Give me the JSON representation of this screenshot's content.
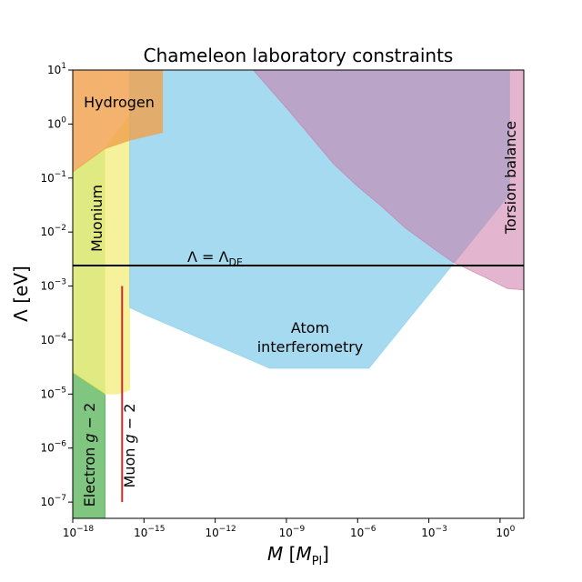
{
  "chart_data": {
    "type": "area",
    "title": "Chameleon laboratory constraints",
    "xlabel": "M [M_Pl]",
    "ylabel": "Λ [eV]",
    "x_scale": "log",
    "y_scale": "log",
    "xlim": [
      1e-18,
      10
    ],
    "ylim": [
      5e-08,
      10
    ],
    "x_tick_exponents": [
      -18,
      -15,
      -12,
      -9,
      -6,
      -3,
      0
    ],
    "y_tick_exponents": [
      -7,
      -6,
      -5,
      -4,
      -3,
      -2,
      -1,
      0,
      1
    ],
    "grid": false,
    "reference_line": {
      "label": "Λ = Λ_DE",
      "y": 0.0024
    },
    "regions": [
      {
        "name": "Electron g − 2",
        "color": "#2ca02c",
        "opacity": 0.6,
        "points": [
          [
            1e-18,
            5e-08
          ],
          [
            1e-18,
            2.5e-05
          ],
          [
            2.3e-17,
            1e-05
          ],
          [
            2.3e-17,
            5e-08
          ]
        ]
      },
      {
        "name": "Muonium",
        "color": "#d5e35a",
        "opacity": 0.75,
        "points": [
          [
            1e-18,
            2.5e-05
          ],
          [
            1e-18,
            0.13
          ],
          [
            2.3e-17,
            0.35
          ],
          [
            2.3e-17,
            1e-05
          ]
        ]
      },
      {
        "name": "Muonium (extended)",
        "color": "#f3ee7a",
        "opacity": 0.75,
        "points": [
          [
            2.3e-17,
            1e-05
          ],
          [
            2.3e-17,
            0.35
          ],
          [
            2.5e-16,
            1.5
          ],
          [
            2.5e-16,
            1.2e-05
          ],
          [
            8e-17,
            1e-05
          ]
        ]
      },
      {
        "name": "Atom interferometry",
        "color": "#87ceeb",
        "opacity": 0.75,
        "points": [
          [
            2.5e-16,
            0.0004
          ],
          [
            2.5e-16,
            10
          ],
          [
            2.5,
            10
          ],
          [
            2.5,
            0.05
          ],
          [
            3e-06,
            3e-05
          ],
          [
            2e-10,
            3e-05
          ],
          [
            1e-15,
            0.0003
          ]
        ]
      },
      {
        "name": "Torsion balance",
        "color": "#cc79a7",
        "opacity": 0.55,
        "points": [
          [
            4e-11,
            10
          ],
          [
            10,
            10
          ],
          [
            10,
            0.00085
          ],
          [
            2,
            0.0009
          ],
          [
            0.2,
            0.0015
          ],
          [
            0.01,
            0.0028
          ],
          [
            0.0015,
            0.005
          ],
          [
            0.0001,
            0.012
          ],
          [
            1e-05,
            0.03
          ],
          [
            1e-06,
            0.07
          ],
          [
            1e-07,
            0.18
          ],
          [
            1e-08,
            0.6
          ],
          [
            1e-09,
            2
          ],
          [
            4e-11,
            10
          ]
        ]
      },
      {
        "name": "Hydrogen",
        "color": "#f0a04b",
        "opacity": 0.8,
        "points": [
          [
            1e-18,
            0.13
          ],
          [
            1e-18,
            10
          ],
          [
            6e-15,
            10
          ],
          [
            6e-15,
            0.7
          ],
          [
            2.5e-16,
            0.5
          ],
          [
            2.3e-17,
            0.35
          ]
        ]
      }
    ],
    "muon_line": {
      "name": "Muon g − 2",
      "color": "#d62728",
      "x": 1.2e-16,
      "y_range": [
        1e-07,
        0.001
      ]
    },
    "labels": {
      "hydrogen": "Hydrogen",
      "muonium": "Muonium",
      "electron": "Electron g − 2",
      "muon": "Muon g − 2",
      "torsion": "Torsion balance",
      "atom_line1": "Atom",
      "atom_line2": "interferometry",
      "lambda_de": "Λ = Λ_DE"
    }
  }
}
